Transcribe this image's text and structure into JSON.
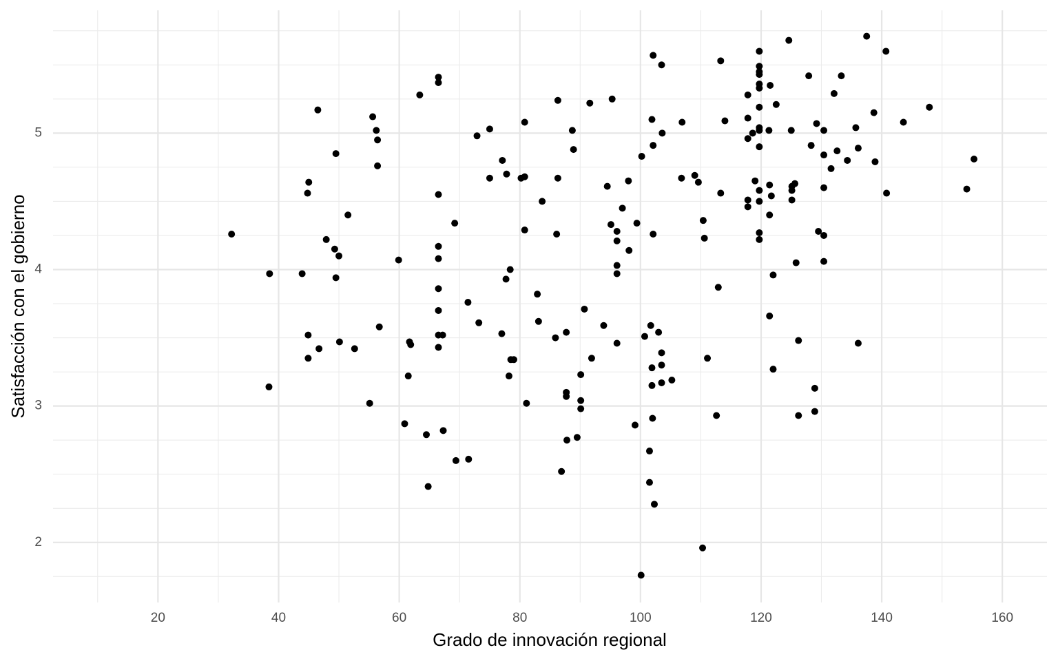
{
  "chart_data": {
    "type": "scatter",
    "x_label": "Grado de innovación regional",
    "y_label": "Satisfacción con el gobierno",
    "xlim": [
      2.6,
      167.4
    ],
    "ylim": [
      1.56,
      5.9
    ],
    "xticks": [
      20,
      40,
      60,
      80,
      100,
      120,
      140,
      160
    ],
    "yticks": [
      2,
      3,
      4,
      5
    ],
    "grid": true,
    "color": "#000000",
    "x": [
      32.2,
      38.5,
      38.4,
      43.9,
      44.8,
      45.0,
      44.9,
      44.9,
      46.7,
      46.5,
      47.9,
      49.3,
      49.5,
      49.5,
      50.0,
      50.1,
      51.5,
      52.6,
      55.1,
      55.6,
      56.2,
      56.4,
      56.4,
      56.7,
      59.9,
      60.9,
      61.5,
      61.7,
      61.9,
      63.4,
      64.5,
      64.8,
      66.5,
      66.5,
      66.5,
      66.5,
      66.5,
      66.5,
      66.5,
      66.5,
      66.5,
      67.2,
      67.3,
      69.2,
      69.4,
      71.5,
      71.4,
      72.9,
      73.2,
      75.0,
      75.0,
      77.0,
      77.1,
      77.8,
      77.7,
      78.4,
      78.2,
      78.5,
      79.0,
      80.2,
      80.8,
      80.8,
      80.8,
      81.1,
      82.9,
      83.1,
      83.7,
      85.9,
      86.1,
      86.3,
      86.3,
      86.9,
      87.7,
      87.7,
      87.7,
      87.8,
      88.7,
      88.9,
      89.5,
      90.1,
      90.1,
      90.1,
      90.7,
      91.6,
      91.9,
      93.9,
      94.5,
      95.1,
      95.3,
      96.1,
      96.1,
      96.1,
      96.1,
      96.1,
      97.0,
      98.0,
      98.1,
      99.1,
      99.4,
      100.2,
      100.1,
      100.7,
      101.5,
      101.5,
      101.7,
      101.9,
      101.9,
      101.9,
      102.0,
      102.1,
      102.1,
      102.1,
      102.3,
      103.0,
      103.5,
      103.5,
      103.5,
      103.5,
      103.6,
      105.2,
      106.8,
      106.9,
      109.0,
      109.6,
      110.3,
      110.4,
      110.6,
      111.1,
      112.6,
      112.9,
      113.3,
      113.3,
      114.0,
      117.8,
      117.8,
      117.8,
      117.8,
      117.8,
      118.6,
      119.0,
      119.7,
      119.7,
      119.7,
      119.7,
      119.7,
      119.7,
      119.7,
      119.7,
      119.7,
      119.7,
      119.7,
      119.7,
      119.7,
      119.7,
      121.3,
      121.4,
      121.4,
      121.4,
      121.5,
      121.7,
      122.0,
      122.0,
      122.5,
      124.6,
      125.0,
      125.1,
      125.1,
      125.1,
      125.6,
      125.8,
      126.2,
      126.2,
      127.9,
      128.3,
      128.9,
      128.9,
      129.2,
      129.5,
      130.4,
      130.4,
      130.4,
      130.4,
      130.4,
      131.6,
      132.1,
      132.6,
      133.3,
      134.3,
      135.7,
      136.1,
      136.1,
      137.5,
      138.7,
      138.9,
      140.7,
      140.8,
      143.6,
      147.9,
      154.1,
      155.3
    ],
    "values": [
      4.26,
      3.97,
      3.14,
      3.97,
      4.56,
      4.64,
      3.52,
      3.35,
      3.42,
      5.17,
      4.22,
      4.15,
      4.85,
      3.94,
      4.1,
      3.47,
      4.4,
      3.42,
      3.02,
      5.12,
      5.02,
      4.95,
      4.76,
      3.58,
      4.07,
      2.87,
      3.22,
      3.47,
      3.45,
      5.28,
      2.79,
      2.41,
      5.41,
      5.37,
      4.55,
      4.17,
      4.08,
      3.86,
      3.7,
      3.52,
      3.43,
      3.52,
      2.82,
      4.34,
      2.6,
      2.61,
      3.76,
      4.98,
      3.61,
      5.03,
      4.67,
      3.53,
      4.8,
      4.7,
      3.93,
      4.0,
      3.22,
      3.34,
      3.34,
      4.67,
      4.68,
      5.08,
      4.29,
      3.02,
      3.82,
      3.62,
      4.5,
      3.5,
      4.26,
      4.67,
      5.24,
      2.52,
      3.54,
      3.1,
      3.07,
      2.75,
      5.02,
      4.88,
      2.77,
      3.23,
      3.04,
      2.98,
      3.71,
      5.22,
      3.35,
      3.59,
      4.61,
      4.33,
      5.25,
      4.28,
      4.21,
      4.03,
      3.97,
      3.46,
      4.45,
      4.65,
      4.14,
      2.86,
      4.34,
      4.83,
      1.76,
      3.51,
      2.67,
      2.44,
      3.59,
      5.1,
      3.28,
      3.15,
      2.91,
      5.57,
      4.91,
      4.26,
      2.28,
      3.54,
      5.5,
      3.39,
      3.3,
      3.17,
      5.0,
      3.19,
      4.67,
      5.08,
      4.69,
      4.64,
      1.96,
      4.36,
      4.23,
      3.35,
      2.93,
      3.87,
      5.53,
      4.56,
      5.09,
      5.28,
      5.11,
      4.96,
      4.51,
      4.46,
      5.0,
      4.65,
      5.6,
      5.49,
      5.45,
      5.43,
      5.36,
      5.33,
      5.19,
      5.04,
      5.02,
      4.9,
      4.58,
      4.5,
      4.27,
      4.22,
      5.02,
      4.62,
      4.4,
      3.66,
      5.35,
      4.54,
      3.96,
      3.27,
      5.21,
      5.68,
      5.02,
      4.51,
      4.58,
      4.61,
      4.63,
      4.05,
      3.48,
      2.93,
      5.42,
      4.91,
      3.13,
      2.96,
      5.07,
      4.28,
      5.02,
      4.84,
      4.6,
      4.25,
      4.06,
      4.74,
      5.29,
      4.87,
      5.42,
      4.8,
      5.04,
      4.89,
      3.46,
      5.71,
      5.15,
      4.79,
      5.6,
      4.56,
      5.08,
      5.19,
      4.59,
      4.81
    ]
  }
}
